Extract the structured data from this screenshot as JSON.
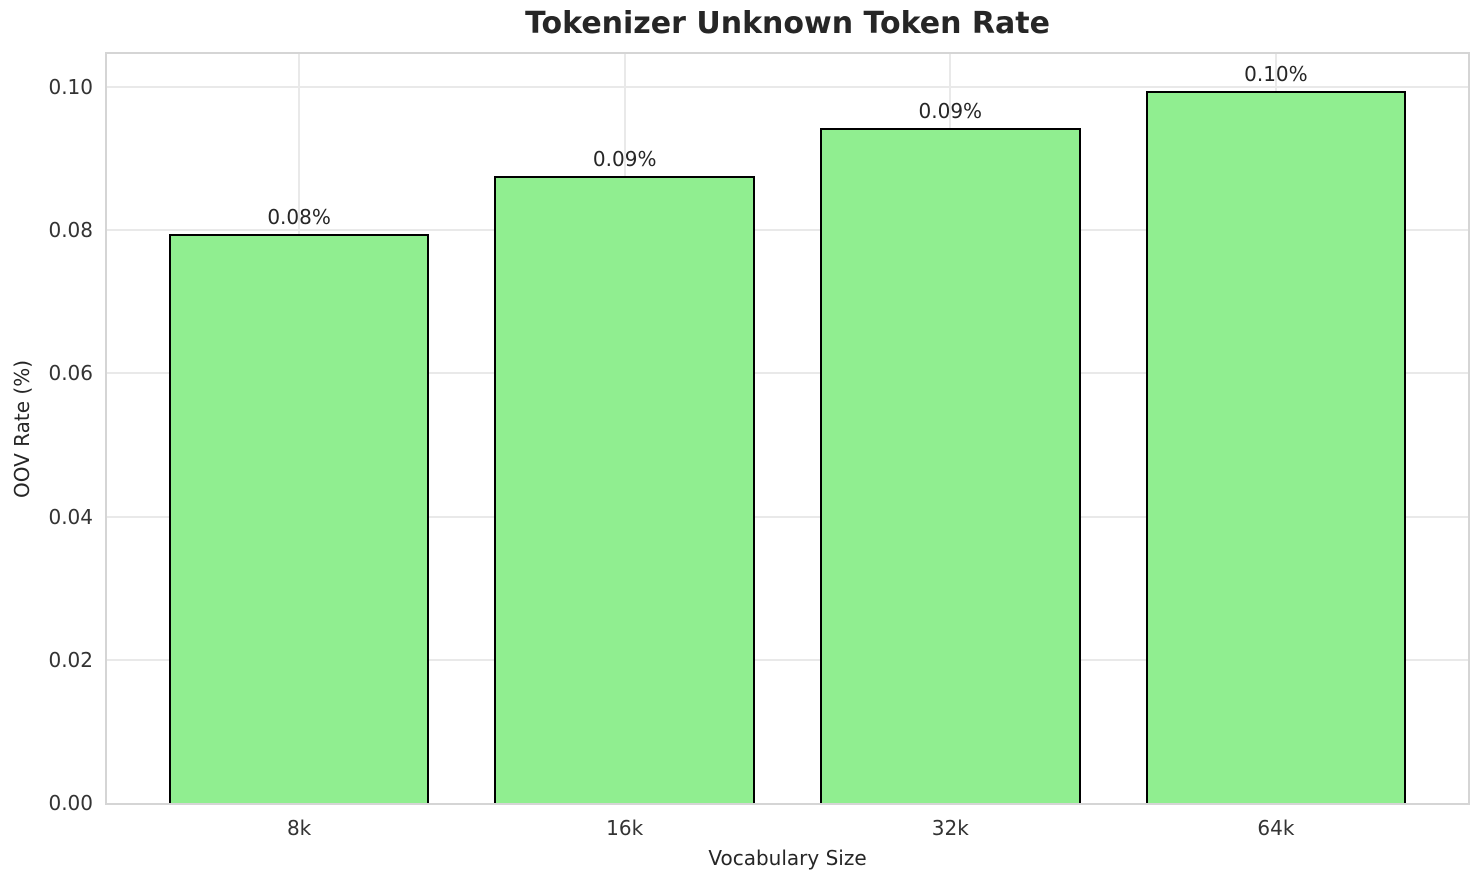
{
  "chart_data": {
    "type": "bar",
    "title": "Tokenizer Unknown Token Rate",
    "xlabel": "Vocabulary Size",
    "ylabel": "OOV Rate (%)",
    "categories": [
      "8k",
      "16k",
      "32k",
      "64k"
    ],
    "values": [
      0.0795,
      0.0875,
      0.0943,
      0.0995
    ],
    "bar_labels": [
      "0.08%",
      "0.09%",
      "0.09%",
      "0.10%"
    ],
    "ytick_values": [
      0.0,
      0.02,
      0.04,
      0.06,
      0.08,
      0.1
    ],
    "ytick_labels": [
      "0.00",
      "0.02",
      "0.04",
      "0.06",
      "0.08",
      "0.10"
    ],
    "ylim": [
      0,
      0.1046
    ],
    "xlim": [
      -0.59,
      3.59
    ],
    "bar_width": 0.8,
    "grid": true,
    "legend_position": "none",
    "colors": {
      "bar_fill": "#90EE90",
      "bar_edge": "#000000",
      "grid": "#e9e9e9",
      "spine": "#d5d5d5",
      "text": "#262626"
    }
  }
}
